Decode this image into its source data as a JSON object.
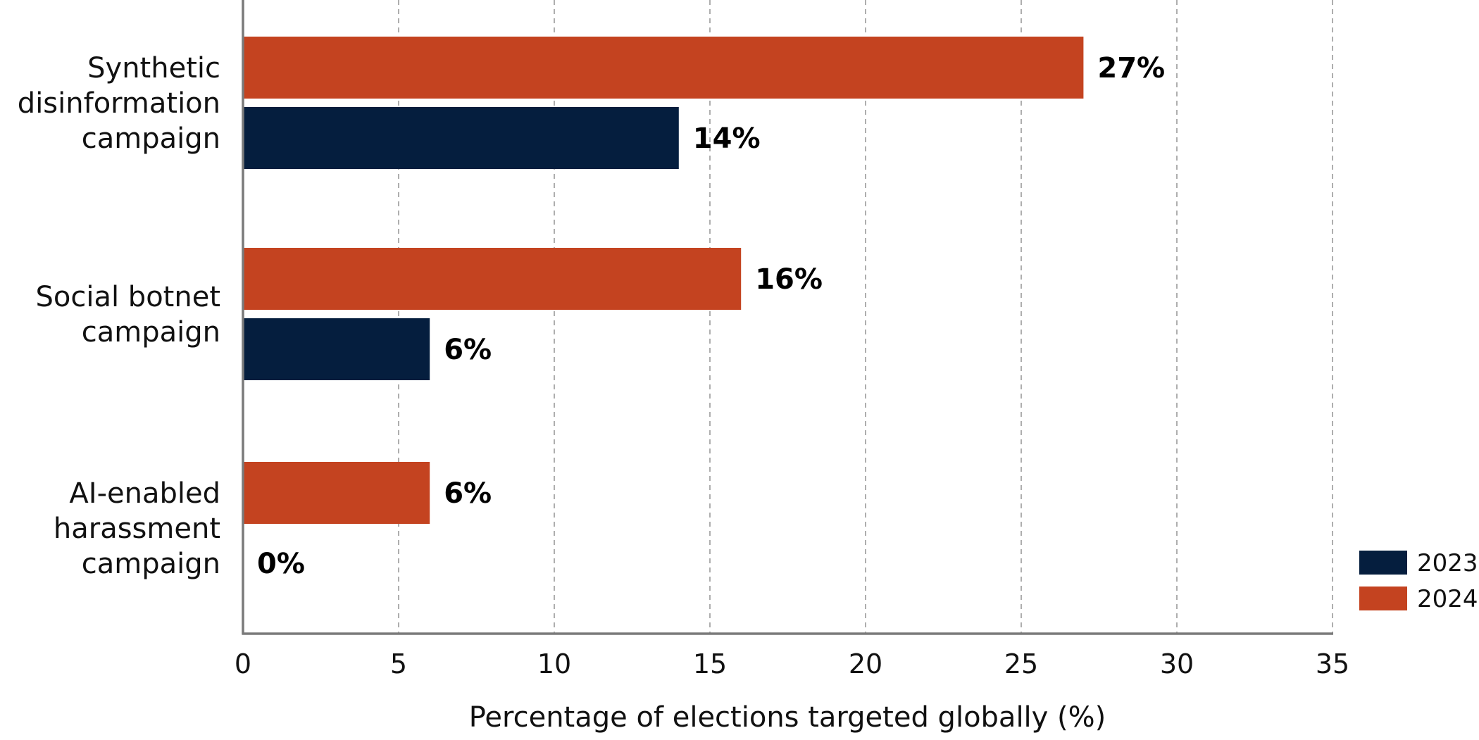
{
  "chart_data": {
    "type": "bar",
    "orientation": "horizontal",
    "categories": [
      [
        "Synthetic",
        "disinformation",
        "campaign"
      ],
      [
        "Social botnet",
        "campaign"
      ],
      [
        "AI-enabled",
        "harassment",
        "campaign"
      ]
    ],
    "series": [
      {
        "name": "2024",
        "color": "#c44320",
        "values": [
          27,
          16,
          6
        ],
        "labels": [
          "27%",
          "16%",
          "6%"
        ]
      },
      {
        "name": "2023",
        "color": "#051e3e",
        "values": [
          14,
          6,
          0
        ],
        "labels": [
          "14%",
          "6%",
          "0%"
        ]
      }
    ],
    "xlabel": "Percentage of elections targeted globally (%)",
    "ylabel": "",
    "xlim": [
      0,
      35
    ],
    "xticks": [
      0,
      5,
      10,
      15,
      20,
      25,
      30,
      35
    ],
    "grid": "vertical dashed",
    "legend": {
      "placement": "bottom-right",
      "order": [
        "2023",
        "2024"
      ]
    }
  }
}
